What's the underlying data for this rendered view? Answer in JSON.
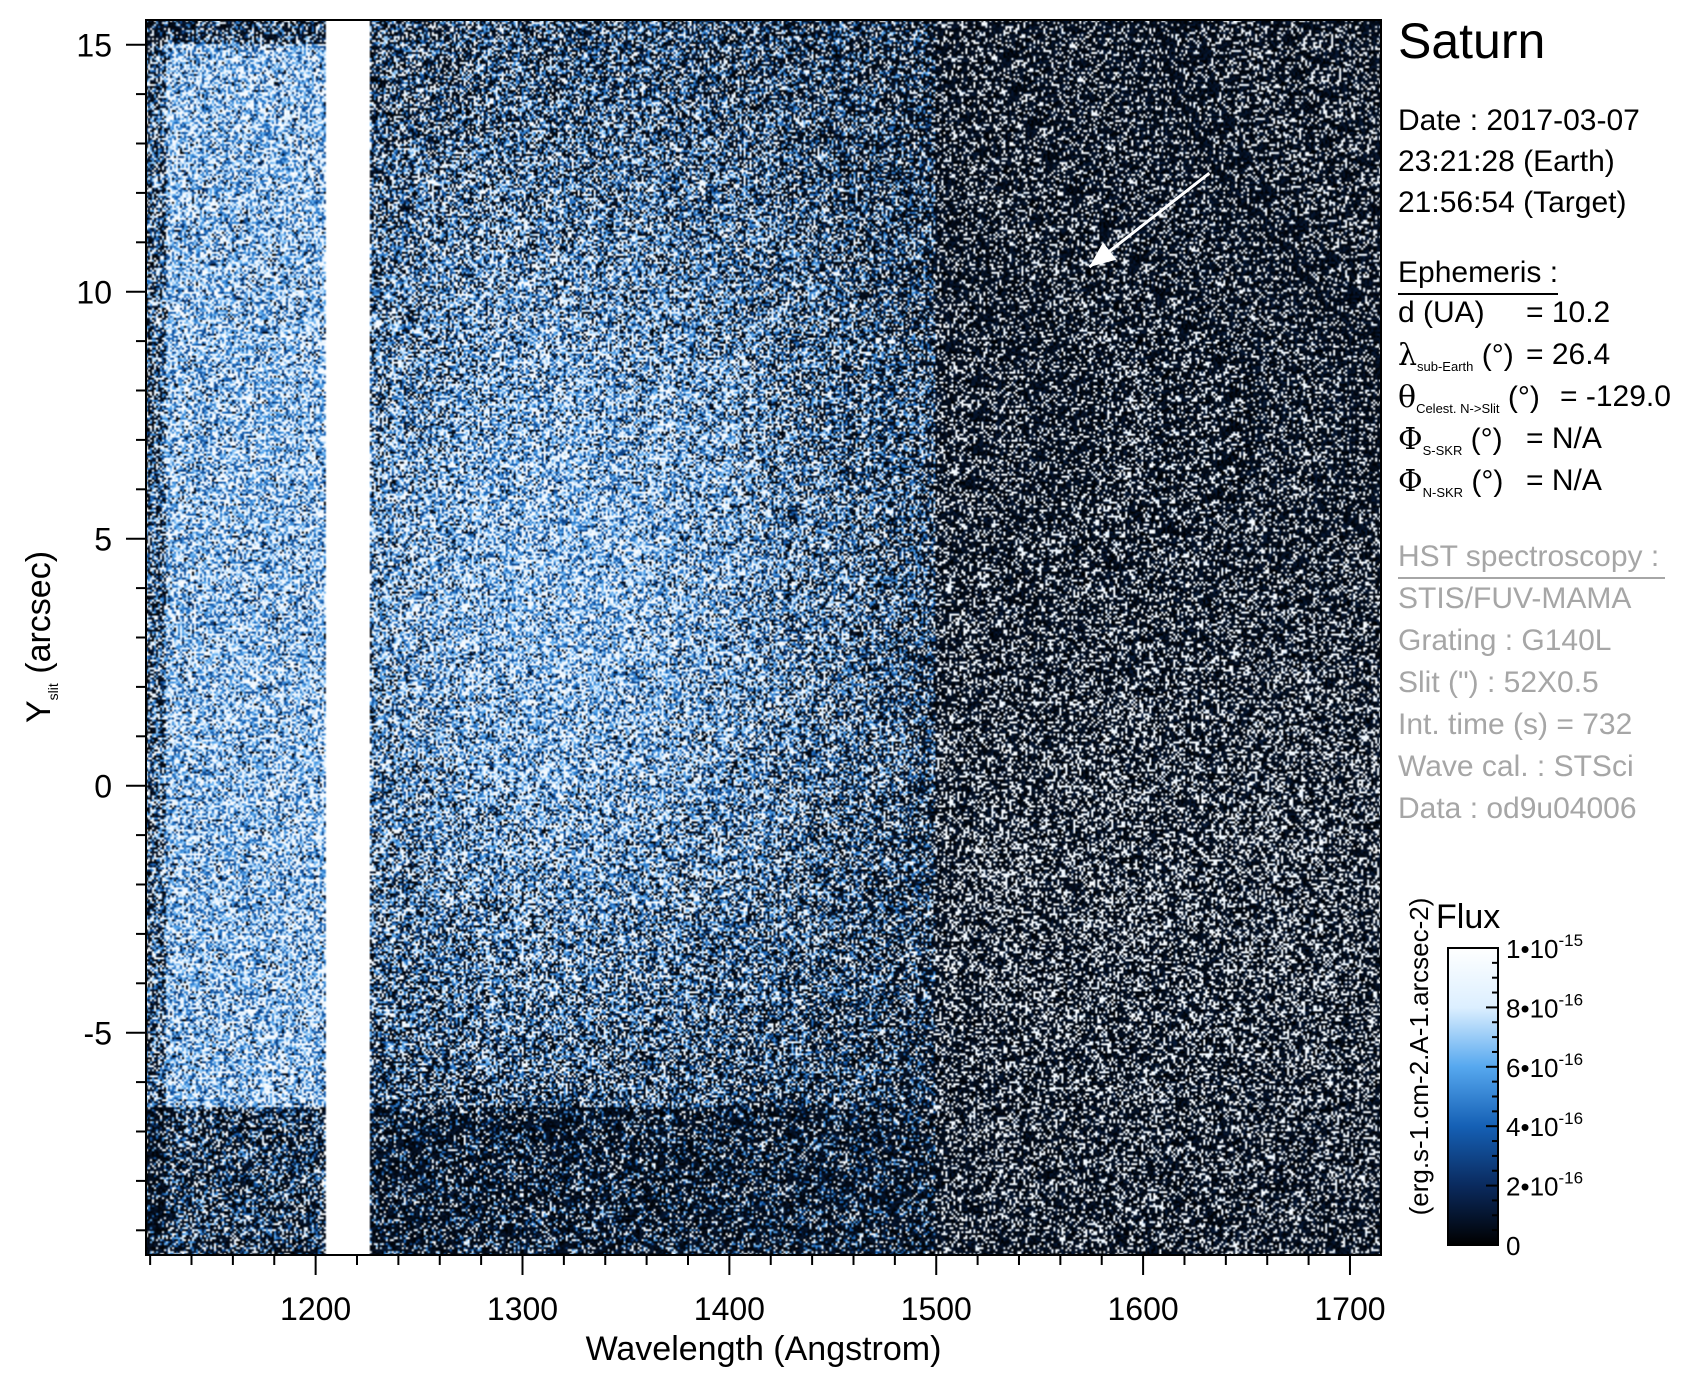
{
  "chart_data": {
    "type": "heatmap",
    "xlabel": "Wavelength (Angstrom)",
    "ylabel_main": "Y",
    "ylabel_sub": "slit",
    "ylabel_unit": " (arcsec)",
    "xlim": [
      1118,
      1715
    ],
    "ylim": [
      -9.5,
      15.5
    ],
    "x_ticks": [
      1200,
      1300,
      1400,
      1500,
      1600,
      1700
    ],
    "x_tick_labels": [
      "1200",
      "1300",
      "1400",
      "1500",
      "1600",
      "1700"
    ],
    "y_ticks": [
      -5,
      0,
      5,
      10,
      15
    ],
    "y_tick_labels": [
      "-5",
      "0",
      "5",
      "10",
      "15"
    ],
    "lyman_alpha_saturated_band": [
      1205,
      1226
    ],
    "colormap": [
      "#000000",
      "#0a2a5e",
      "#1560b5",
      "#56a8ef",
      "#dcefff",
      "#ffffff"
    ],
    "colorbar": {
      "title": "Flux",
      "unit_label": "(erg.s-1.cm-2.A-1.arcsec-2)",
      "range": [
        0,
        1e-15
      ],
      "tick_values": [
        0,
        2e-16,
        4e-16,
        6e-16,
        8e-16,
        1e-15
      ],
      "tick_labels": [
        {
          "base": "0",
          "exp": ""
        },
        {
          "base": "2•10",
          "exp": "-16"
        },
        {
          "base": "4•10",
          "exp": "-16"
        },
        {
          "base": "6•10",
          "exp": "-16"
        },
        {
          "base": "8•10",
          "exp": "-16"
        },
        {
          "base": "1•10",
          "exp": "-15"
        }
      ]
    },
    "annotation_arrow": {
      "from": [
        1632,
        12.4
      ],
      "to": [
        1574,
        10.5
      ],
      "color": "#ffffff"
    }
  },
  "info": {
    "target": "Saturn",
    "date_line": "Date : 2017-03-07",
    "earth_time": "23:21:28 (Earth)",
    "target_time": "21:56:54 (Target)",
    "ephemeris_title": "Ephemeris :",
    "ephemeris": [
      {
        "sym": "d (UA)",
        "sub": "",
        "tail": "",
        "value": "= 10.2"
      },
      {
        "sym": "λ",
        "sub": "sub-Earth",
        "tail": " (°)",
        "value": "= 26.4"
      },
      {
        "sym": "θ",
        "sub": "Celest. N->Slit",
        "tail": " (°)",
        "value": "= -129.0"
      },
      {
        "sym": "Φ",
        "sub": "S-SKR",
        "tail": " (°)",
        "value": "= N/A"
      },
      {
        "sym": "Φ",
        "sub": "N-SKR",
        "tail": " (°)",
        "value": "= N/A"
      }
    ],
    "hst_title": "HST spectroscopy :",
    "hst_lines": [
      "STIS/FUV-MAMA",
      "Grating : G140L",
      "Slit (\") : 52X0.5",
      "Int. time (s) = 732",
      "Wave cal. : STSci",
      "Data : od9u04006"
    ]
  }
}
